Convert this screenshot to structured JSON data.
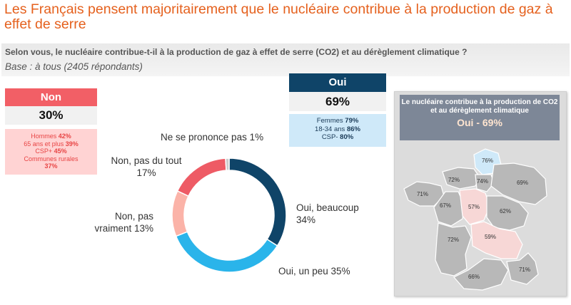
{
  "title": "Les Français pensent majoritairement que le nucléaire contribue à la production de gaz à effet de serre",
  "question": "Selon vous, le nucléaire contribue-t-il à la production de gaz à effet de serre (CO2) et au dérèglement climatique ?",
  "base": "Base : à tous (2405 répondants)",
  "non_box": {
    "label": "Non",
    "percent": "30%",
    "details": [
      {
        "label": "Hommes",
        "value": "42%"
      },
      {
        "label": "65 ans et plus",
        "value": "39%"
      },
      {
        "label": "CSP+",
        "value": "45%"
      },
      {
        "label": "Communes rurales",
        "value": "37%"
      }
    ]
  },
  "oui_box": {
    "label": "Oui",
    "percent": "69%",
    "details": [
      {
        "label": "Femmes",
        "value": "79%"
      },
      {
        "label": "18-34 ans",
        "value": "86%"
      },
      {
        "label": "CSP-",
        "value": "80%"
      }
    ]
  },
  "chart_data": {
    "type": "pie",
    "donut": true,
    "slices": [
      {
        "label_lines": [
          "Oui, beaucoup",
          "34%"
        ],
        "value": 34,
        "color": "#0f4468"
      },
      {
        "label_lines": [
          "Oui, un peu 35%"
        ],
        "value": 35,
        "color": "#2ab4ea"
      },
      {
        "label_lines": [
          "Non, pas",
          "vraiment 13%"
        ],
        "value": 13,
        "color": "#fbb3a8"
      },
      {
        "label_lines": [
          "Non, pas du tout",
          "17%"
        ],
        "value": 17,
        "color": "#ee5b65"
      },
      {
        "label_lines": [
          "Ne se prononce pas 1%"
        ],
        "value": 1,
        "color": "#cccccc"
      }
    ]
  },
  "map": {
    "title": "Le nucléaire contribue à la production de CO2 et au dérèglement climatique",
    "subtitle": "Oui - 69%",
    "regions": [
      {
        "name": "Hauts-de-France",
        "value": "76%",
        "highlight": "blue"
      },
      {
        "name": "Normandie",
        "value": "72%",
        "highlight": "none"
      },
      {
        "name": "Bretagne",
        "value": "71%",
        "highlight": "none"
      },
      {
        "name": "Île-de-France",
        "value": "74%",
        "highlight": "none"
      },
      {
        "name": "Grand Est",
        "value": "69%",
        "highlight": "none"
      },
      {
        "name": "Pays de la Loire",
        "value": "67%",
        "highlight": "none"
      },
      {
        "name": "Centre-Val de Loire",
        "value": "57%",
        "highlight": "pink"
      },
      {
        "name": "Bourgogne-Franche-Comté",
        "value": "62%",
        "highlight": "none"
      },
      {
        "name": "Nouvelle-Aquitaine",
        "value": "72%",
        "highlight": "none"
      },
      {
        "name": "Auvergne-Rhône-Alpes",
        "value": "59%",
        "highlight": "pink"
      },
      {
        "name": "Occitanie",
        "value": "66%",
        "highlight": "none"
      },
      {
        "name": "Provence-Alpes-Côte d'Azur",
        "value": "71%",
        "highlight": "none"
      }
    ]
  }
}
